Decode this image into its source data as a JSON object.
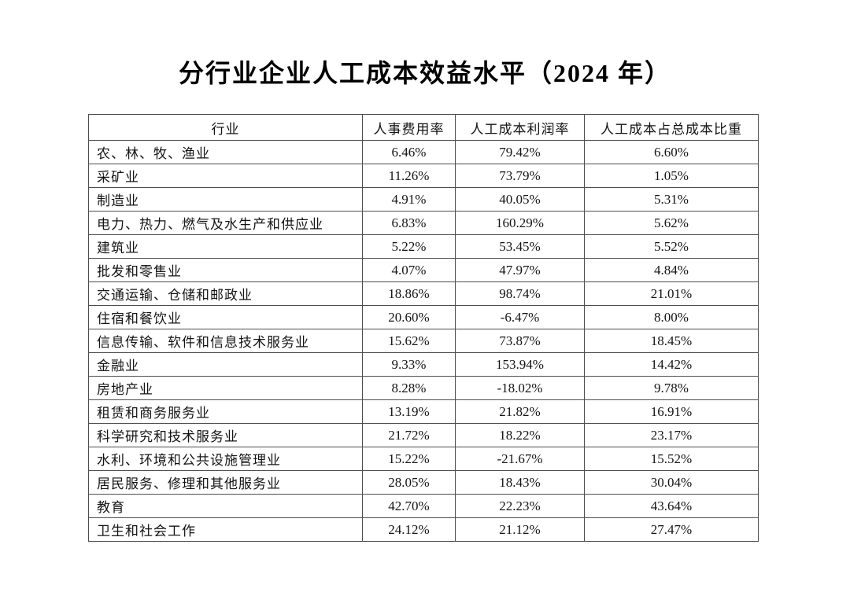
{
  "title": "分行业企业人工成本效益水平（2024 年）",
  "chart_data": {
    "type": "table",
    "title": "分行业企业人工成本效益水平（2024 年）",
    "columns": [
      "行业",
      "人事费用率",
      "人工成本利润率",
      "人工成本占总成本比重"
    ],
    "rows": [
      [
        "农、林、牧、渔业",
        "6.46%",
        "79.42%",
        "6.60%"
      ],
      [
        "采矿业",
        "11.26%",
        "73.79%",
        "1.05%"
      ],
      [
        "制造业",
        "4.91%",
        "40.05%",
        "5.31%"
      ],
      [
        "电力、热力、燃气及水生产和供应业",
        "6.83%",
        "160.29%",
        "5.62%"
      ],
      [
        "建筑业",
        "5.22%",
        "53.45%",
        "5.52%"
      ],
      [
        "批发和零售业",
        "4.07%",
        "47.97%",
        "4.84%"
      ],
      [
        "交通运输、仓储和邮政业",
        "18.86%",
        "98.74%",
        "21.01%"
      ],
      [
        "住宿和餐饮业",
        "20.60%",
        "-6.47%",
        "8.00%"
      ],
      [
        "信息传输、软件和信息技术服务业",
        "15.62%",
        "73.87%",
        "18.45%"
      ],
      [
        "金融业",
        "9.33%",
        "153.94%",
        "14.42%"
      ],
      [
        "房地产业",
        "8.28%",
        "-18.02%",
        "9.78%"
      ],
      [
        "租赁和商务服务业",
        "13.19%",
        "21.82%",
        "16.91%"
      ],
      [
        "科学研究和技术服务业",
        "21.72%",
        "18.22%",
        "23.17%"
      ],
      [
        "水利、环境和公共设施管理业",
        "15.22%",
        "-21.67%",
        "15.52%"
      ],
      [
        "居民服务、修理和其他服务业",
        "28.05%",
        "18.43%",
        "30.04%"
      ],
      [
        "教育",
        "42.70%",
        "22.23%",
        "43.64%"
      ],
      [
        "卫生和社会工作",
        "24.12%",
        "21.12%",
        "27.47%"
      ]
    ]
  },
  "styles": {
    "background": "#ffffff",
    "border_color": "#4d4d4d",
    "text_color": "#141414"
  }
}
